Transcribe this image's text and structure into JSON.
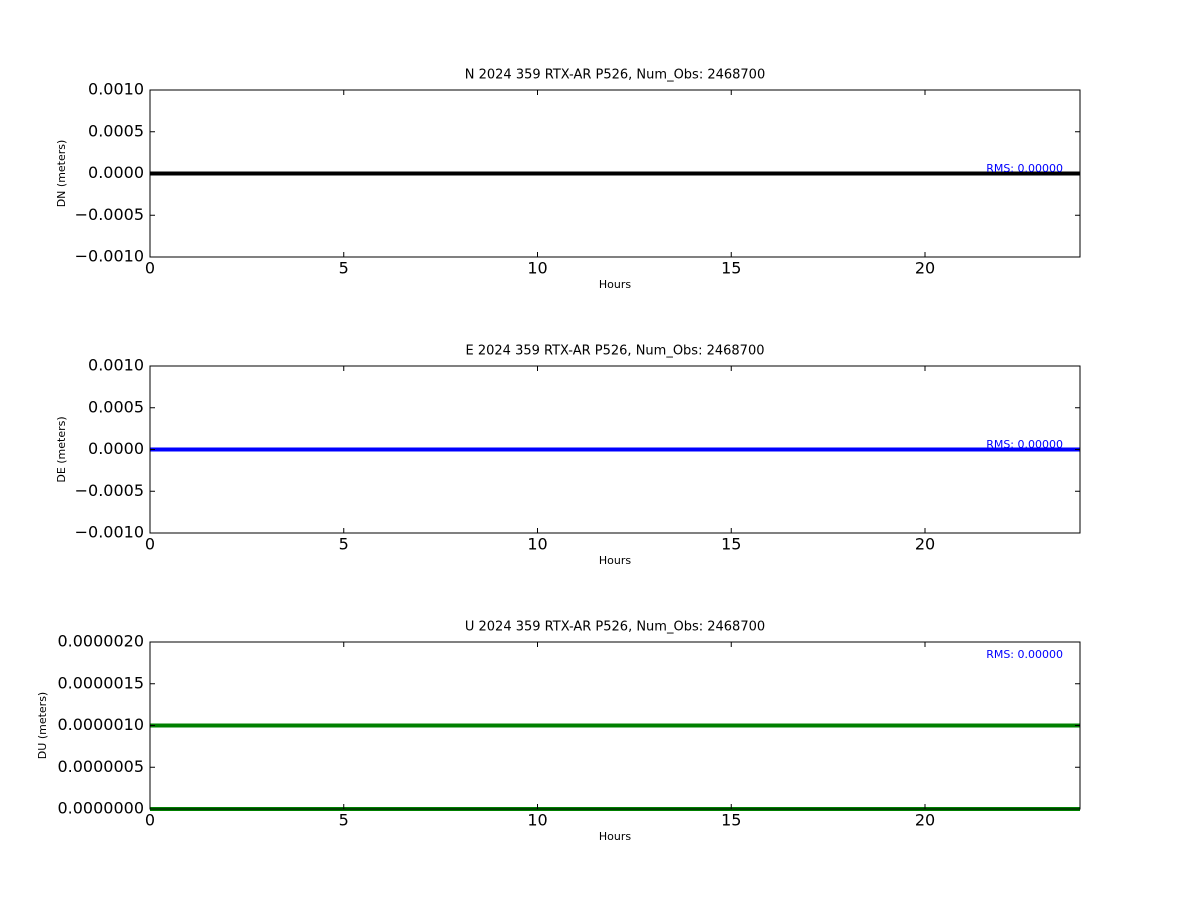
{
  "chart_data": [
    {
      "type": "line",
      "title": "N 2024 359 RTX-AR  P526, Num_Obs: 2468700",
      "xlabel": "Hours",
      "ylabel": "DN (meters)",
      "x": [
        0,
        24
      ],
      "series": [
        {
          "color": "#000000",
          "values": [
            0,
            0
          ]
        }
      ],
      "xlim": [
        0,
        24
      ],
      "xticks": [
        0,
        5,
        10,
        15,
        20
      ],
      "ylim": [
        -0.001,
        0.001
      ],
      "yticks": [
        {
          "value": -0.001,
          "label": "−0.0010"
        },
        {
          "value": -0.0005,
          "label": "−0.0005"
        },
        {
          "value": 0,
          "label": "0.0000"
        },
        {
          "value": 0.0005,
          "label": "0.0005"
        },
        {
          "value": 0.001,
          "label": "0.0010"
        }
      ],
      "annotation": "RMS:  0.00000",
      "annotation_color": "#0000ff"
    },
    {
      "type": "line",
      "title": "E 2024 359 RTX-AR  P526, Num_Obs: 2468700",
      "xlabel": "Hours",
      "ylabel": "DE (meters)",
      "x": [
        0,
        24
      ],
      "series": [
        {
          "color": "#0000ff",
          "values": [
            0,
            0
          ]
        }
      ],
      "xlim": [
        0,
        24
      ],
      "xticks": [
        0,
        5,
        10,
        15,
        20
      ],
      "ylim": [
        -0.001,
        0.001
      ],
      "yticks": [
        {
          "value": -0.001,
          "label": "−0.0010"
        },
        {
          "value": -0.0005,
          "label": "−0.0005"
        },
        {
          "value": 0,
          "label": "0.0000"
        },
        {
          "value": 0.0005,
          "label": "0.0005"
        },
        {
          "value": 0.001,
          "label": "0.0010"
        }
      ],
      "annotation": "RMS:  0.00000",
      "annotation_color": "#0000ff"
    },
    {
      "type": "line",
      "title": "U 2024 359 RTX-AR  P526, Num_Obs: 2468700",
      "xlabel": "Hours",
      "ylabel": "DU (meters)",
      "x": [
        0,
        24
      ],
      "series": [
        {
          "color": "#008000",
          "values": [
            1e-06,
            1e-06
          ]
        },
        {
          "color": "#008000",
          "values": [
            0,
            0
          ]
        }
      ],
      "xlim": [
        0,
        24
      ],
      "xticks": [
        0,
        5,
        10,
        15,
        20
      ],
      "ylim": [
        0,
        2e-06
      ],
      "yticks": [
        {
          "value": 0,
          "label": "0.0000000"
        },
        {
          "value": 5e-07,
          "label": "0.0000005"
        },
        {
          "value": 1e-06,
          "label": "0.0000010"
        },
        {
          "value": 1.5e-06,
          "label": "0.0000015"
        },
        {
          "value": 2e-06,
          "label": "0.0000020"
        }
      ],
      "annotation": "RMS:  0.00000",
      "annotation_color": "#0000ff"
    }
  ]
}
